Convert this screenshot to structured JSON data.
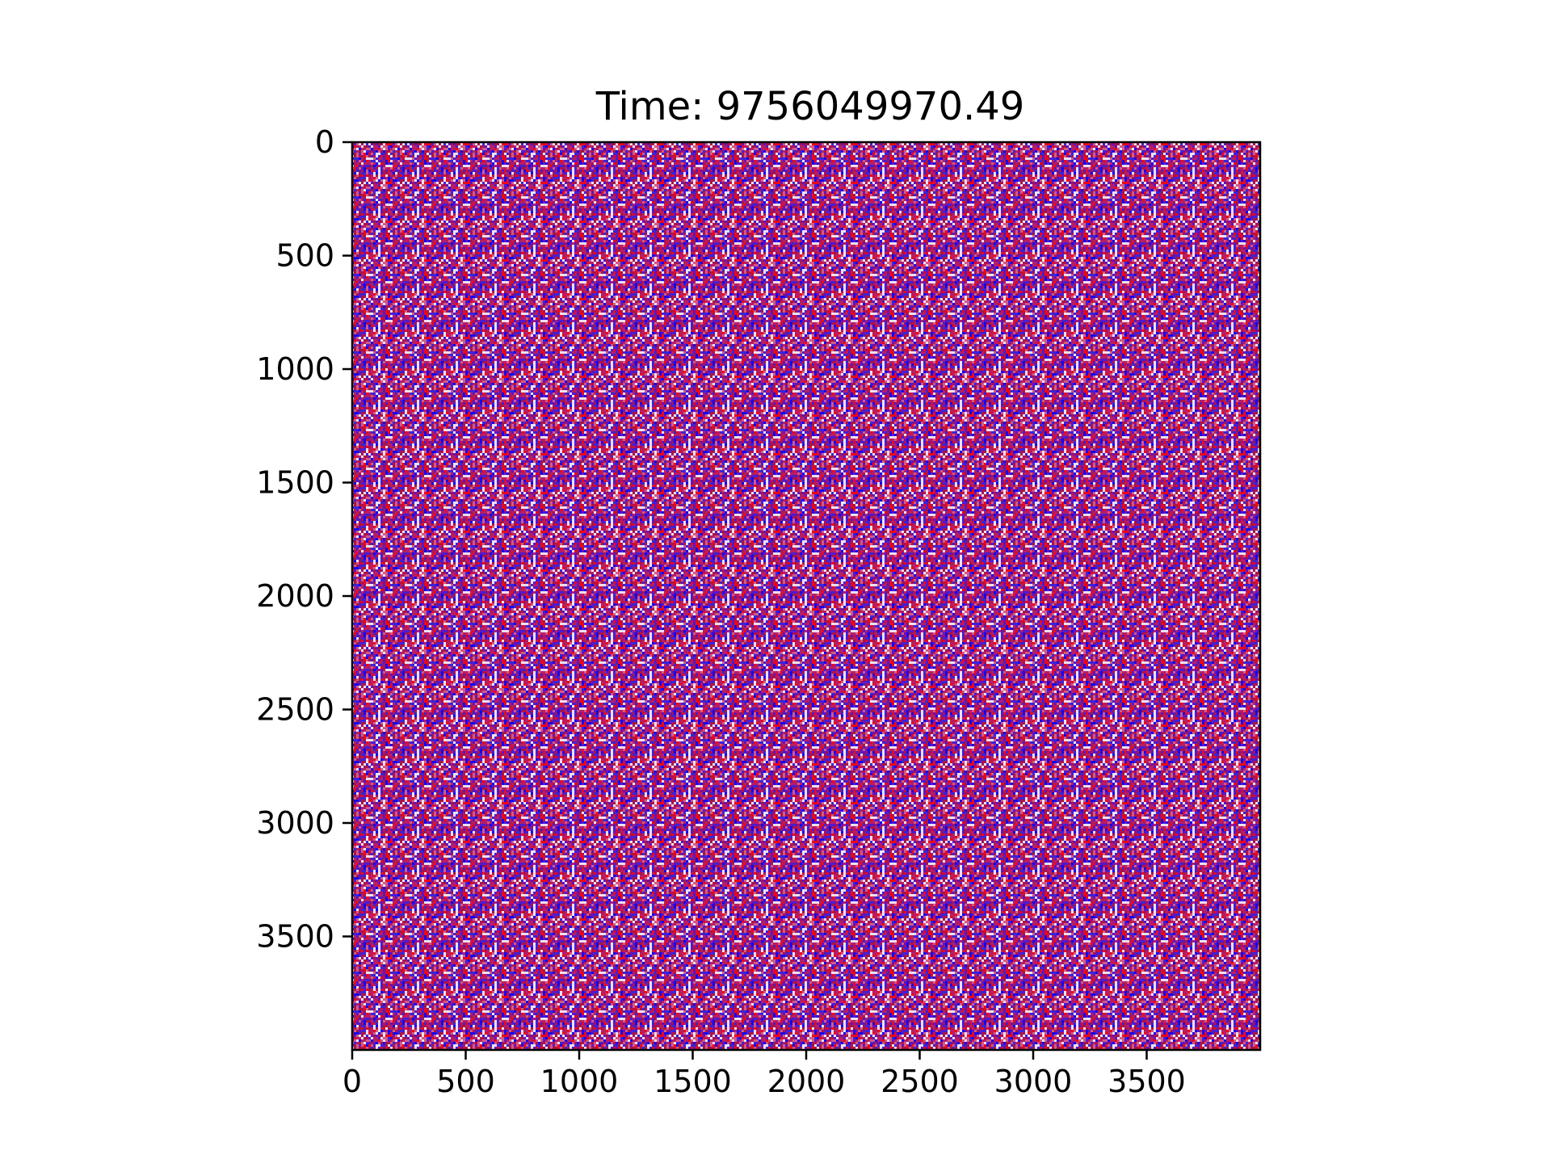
{
  "chart_data": {
    "type": "heatmap",
    "title": "Time: 9756049970.49",
    "xlabel": "",
    "ylabel": "",
    "xlim": [
      0,
      4000
    ],
    "ylim": [
      4000,
      0
    ],
    "x_ticks": [
      0,
      500,
      1000,
      1500,
      2000,
      2500,
      3000,
      3500
    ],
    "y_ticks": [
      0,
      500,
      1000,
      1500,
      2000,
      2500,
      3000,
      3500
    ],
    "x_tick_labels": [
      "0",
      "500",
      "1000",
      "1500",
      "2000",
      "2500",
      "3000",
      "3500"
    ],
    "y_tick_labels": [
      "0",
      "500",
      "1000",
      "1500",
      "2000",
      "2500",
      "3000",
      "3500"
    ],
    "y_axis_inverted": true,
    "grid": false,
    "colormap": "bwr",
    "colors": {
      "low": "#0000ff",
      "mid": "#ffffff",
      "high": "#ff0000",
      "dominant_mix": "#8a2e9a"
    },
    "pattern": "fine-grained random noise of red, blue and white pixels over the whole field"
  }
}
